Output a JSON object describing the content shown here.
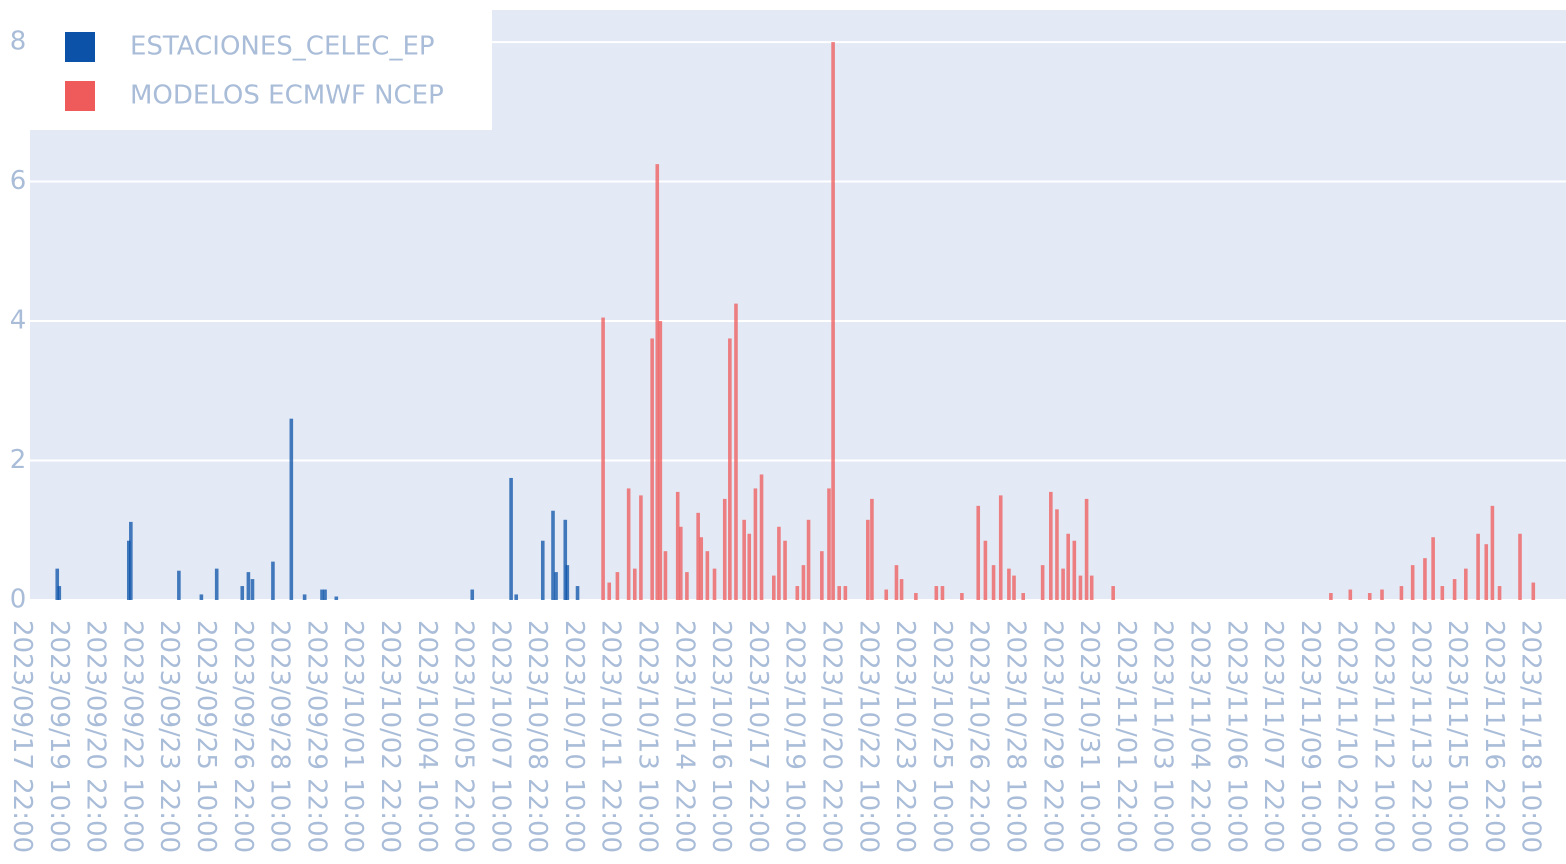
{
  "chart_data": {
    "type": "bar",
    "xlim": [
      "2023/09/17 01:00",
      "2023/11/19 21:00"
    ],
    "ylim": [
      0,
      8.46
    ],
    "yticks": [
      0,
      2,
      4,
      6,
      8
    ],
    "grid": true,
    "legend": "top-left",
    "xticks": [
      "2023/09/17 22:00",
      "2023/09/19 10:00",
      "2023/09/20 22:00",
      "2023/09/22 10:00",
      "2023/09/23 22:00",
      "2023/09/25 10:00",
      "2023/09/26 22:00",
      "2023/09/28 10:00",
      "2023/09/29 22:00",
      "2023/10/01 10:00",
      "2023/10/02 22:00",
      "2023/10/04 10:00",
      "2023/10/05 22:00",
      "2023/10/07 10:00",
      "2023/10/08 22:00",
      "2023/10/10 10:00",
      "2023/10/11 22:00",
      "2023/10/13 10:00",
      "2023/10/14 22:00",
      "2023/10/16 10:00",
      "2023/10/17 22:00",
      "2023/10/19 10:00",
      "2023/10/20 22:00",
      "2023/10/22 10:00",
      "2023/10/23 22:00",
      "2023/10/25 10:00",
      "2023/10/26 22:00",
      "2023/10/28 10:00",
      "2023/10/29 22:00",
      "2023/10/31 10:00",
      "2023/11/01 22:00",
      "2023/11/03 10:00",
      "2023/11/04 22:00",
      "2023/11/06 10:00",
      "2023/11/07 22:00",
      "2023/11/09 10:00",
      "2023/11/10 22:00",
      "2023/11/12 10:00",
      "2023/11/13 22:00",
      "2023/11/15 10:00",
      "2023/11/16 22:00",
      "2023/11/18 10:00"
    ],
    "series": [
      {
        "name": "ESTACIONES_CELEC_EP",
        "color": "#0b52a8",
        "x": [
          "2023/09/19 09:00",
          "2023/09/19 11:00",
          "2023/09/22 07:00",
          "2023/09/22 09:00",
          "2023/09/24 08:00",
          "2023/09/25 06:00",
          "2023/09/25 21:00",
          "2023/09/26 22:00",
          "2023/09/27 04:00",
          "2023/09/27 08:00",
          "2023/09/28 04:00",
          "2023/09/28 22:00",
          "2023/09/29 11:00",
          "2023/09/30 04:00",
          "2023/09/30 07:00",
          "2023/09/30 18:00",
          "2023/10/06 07:00",
          "2023/10/07 21:00",
          "2023/10/08 02:00",
          "2023/10/09 04:00",
          "2023/10/09 14:00",
          "2023/10/09 17:00",
          "2023/10/10 02:00",
          "2023/10/10 04:00",
          "2023/10/10 14:00"
        ],
        "values": [
          0.45,
          0.2,
          0.85,
          1.12,
          0.42,
          0.08,
          0.45,
          0.2,
          0.4,
          0.3,
          0.55,
          2.6,
          0.08,
          0.15,
          0.15,
          0.05,
          0.15,
          1.75,
          0.08,
          0.85,
          1.28,
          0.4,
          1.15,
          0.5,
          0.2
        ]
      },
      {
        "name": "MODELOS ECMWF NCEP",
        "color": "#ef5a5a",
        "x": [
          "2023/10/11 15:00",
          "2023/10/11 21:00",
          "2023/10/12 05:00",
          "2023/10/12 16:00",
          "2023/10/12 22:00",
          "2023/10/13 04:00",
          "2023/10/13 15:00",
          "2023/10/13 20:00",
          "2023/10/13 23:00",
          "2023/10/14 04:00",
          "2023/10/14 16:00",
          "2023/10/14 19:00",
          "2023/10/15 01:00",
          "2023/10/15 12:00",
          "2023/10/15 15:00",
          "2023/10/15 21:00",
          "2023/10/16 04:00",
          "2023/10/16 14:00",
          "2023/10/16 19:00",
          "2023/10/17 01:00",
          "2023/10/17 09:00",
          "2023/10/17 14:00",
          "2023/10/17 20:00",
          "2023/10/18 02:00",
          "2023/10/18 14:00",
          "2023/10/18 19:00",
          "2023/10/19 01:00",
          "2023/10/19 13:00",
          "2023/10/19 19:00",
          "2023/10/20 00:00",
          "2023/10/20 13:00",
          "2023/10/20 20:00",
          "2023/10/21 00:00",
          "2023/10/21 06:00",
          "2023/10/21 12:00",
          "2023/10/22 10:00",
          "2023/10/22 14:00",
          "2023/10/23 04:00",
          "2023/10/23 14:00",
          "2023/10/23 19:00",
          "2023/10/24 09:00",
          "2023/10/25 05:00",
          "2023/10/25 11:00",
          "2023/10/26 06:00",
          "2023/10/26 22:00",
          "2023/10/27 05:00",
          "2023/10/27 13:00",
          "2023/10/27 20:00",
          "2023/10/28 04:00",
          "2023/10/28 09:00",
          "2023/10/28 18:00",
          "2023/10/29 13:00",
          "2023/10/29 21:00",
          "2023/10/30 03:00",
          "2023/10/30 09:00",
          "2023/10/30 14:00",
          "2023/10/30 20:00",
          "2023/10/31 02:00",
          "2023/10/31 08:00",
          "2023/10/31 13:00",
          "2023/11/01 10:00",
          "2023/11/10 07:00",
          "2023/11/11 02:00",
          "2023/11/11 21:00",
          "2023/11/12 09:00",
          "2023/11/13 04:00",
          "2023/11/13 15:00",
          "2023/11/14 03:00",
          "2023/11/14 11:00",
          "2023/11/14 20:00",
          "2023/11/15 08:00",
          "2023/11/15 19:00",
          "2023/11/16 07:00",
          "2023/11/16 15:00",
          "2023/11/16 21:00",
          "2023/11/17 04:00",
          "2023/11/18 00:00",
          "2023/11/18 13:00"
        ],
        "values": [
          4.05,
          0.25,
          0.4,
          1.6,
          0.45,
          1.5,
          3.75,
          6.25,
          4.0,
          0.7,
          1.55,
          1.05,
          0.4,
          1.25,
          0.9,
          0.7,
          0.45,
          1.45,
          3.75,
          4.25,
          1.15,
          0.95,
          1.6,
          1.8,
          0.35,
          1.05,
          0.85,
          0.2,
          0.5,
          1.15,
          0.7,
          1.6,
          8.0,
          0.2,
          0.2,
          1.15,
          1.45,
          0.15,
          0.5,
          0.3,
          0.1,
          0.2,
          0.2,
          0.1,
          1.35,
          0.85,
          0.5,
          1.5,
          0.45,
          0.35,
          0.1,
          0.5,
          1.55,
          1.3,
          0.45,
          0.95,
          0.85,
          0.35,
          1.45,
          0.35,
          0.2,
          0.1,
          0.15,
          0.1,
          0.15,
          0.2,
          0.5,
          0.6,
          0.9,
          0.2,
          0.3,
          0.45,
          0.95,
          0.8,
          1.35,
          0.2,
          0.95,
          0.25
        ]
      }
    ]
  }
}
